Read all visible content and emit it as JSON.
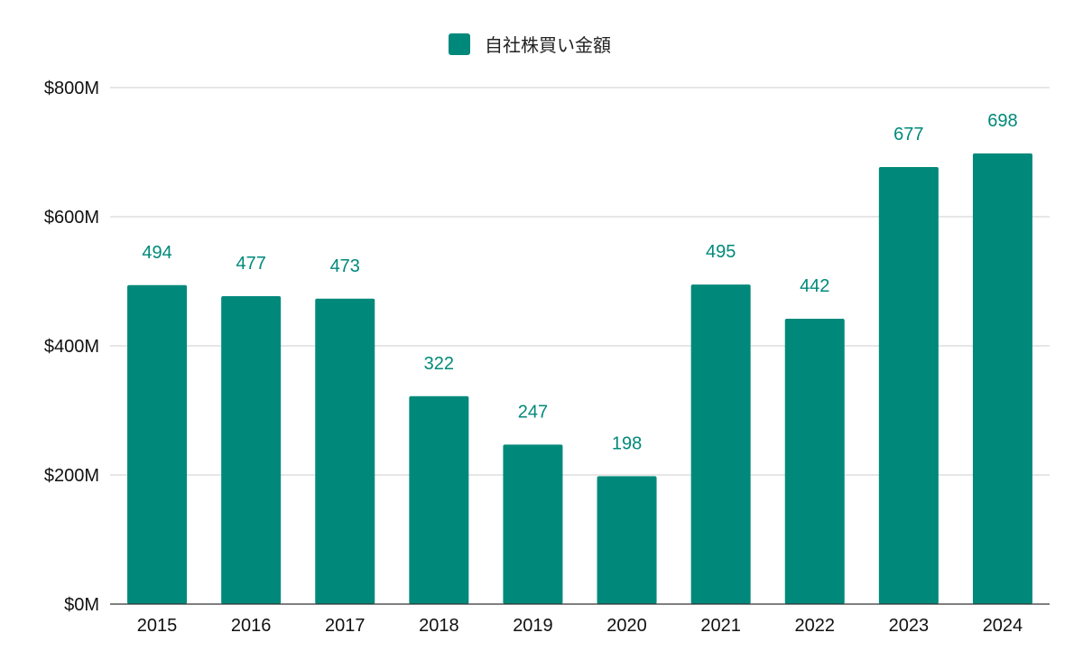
{
  "chart_data": {
    "type": "bar",
    "title": "",
    "xlabel": "",
    "ylabel": "",
    "categories": [
      "2015",
      "2016",
      "2017",
      "2018",
      "2019",
      "2020",
      "2021",
      "2022",
      "2023",
      "2024"
    ],
    "series": [
      {
        "name": "自社株買い金額",
        "values": [
          494,
          477,
          473,
          322,
          247,
          198,
          495,
          442,
          677,
          698
        ],
        "color": "#00897b"
      }
    ],
    "data_labels": [
      "494",
      "477",
      "473",
      "322",
      "247",
      "198",
      "495",
      "442",
      "677",
      "698"
    ],
    "ylim": [
      0,
      800
    ],
    "yticks": [
      0,
      200,
      400,
      600,
      800
    ],
    "ytick_labels": [
      "$0M",
      "$200M",
      "$400M",
      "$600M",
      "$800M"
    ],
    "grid": true,
    "legend_position": "top-center"
  }
}
